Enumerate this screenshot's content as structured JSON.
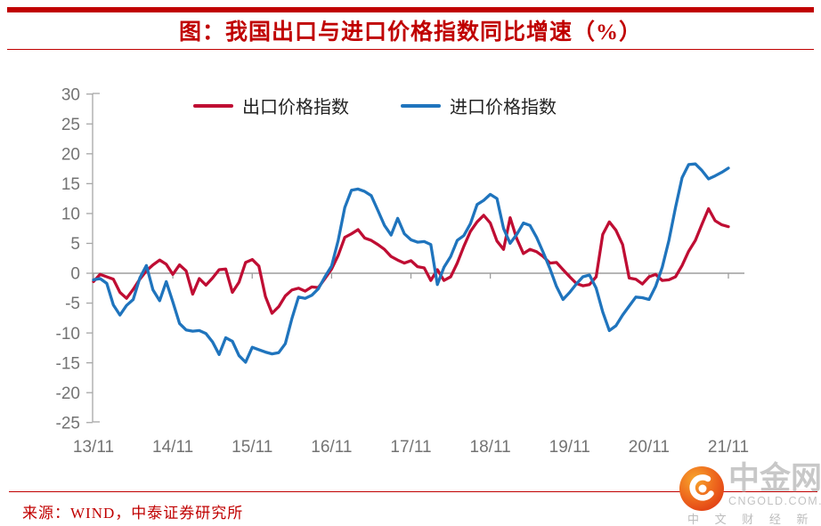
{
  "header": {
    "title": "图：我国出口与进口价格指数同比增速（%）"
  },
  "chart_data": {
    "type": "line",
    "title": "图：我国出口与进口价格指数同比增速（%）",
    "xlabel": "",
    "ylabel": "",
    "ylim": [
      -25,
      30
    ],
    "y_ticks": [
      30,
      25,
      20,
      15,
      10,
      5,
      0,
      -5,
      -10,
      -15,
      -20,
      -25
    ],
    "grid": "zero-line-only",
    "legend_position": "top-center",
    "x": [
      "2013-11",
      "2013-12",
      "2014-01",
      "2014-02",
      "2014-03",
      "2014-04",
      "2014-05",
      "2014-06",
      "2014-07",
      "2014-08",
      "2014-09",
      "2014-10",
      "2014-11",
      "2014-12",
      "2015-01",
      "2015-02",
      "2015-03",
      "2015-04",
      "2015-05",
      "2015-06",
      "2015-07",
      "2015-08",
      "2015-09",
      "2015-10",
      "2015-11",
      "2015-12",
      "2016-01",
      "2016-02",
      "2016-03",
      "2016-04",
      "2016-05",
      "2016-06",
      "2016-07",
      "2016-08",
      "2016-09",
      "2016-10",
      "2016-11",
      "2016-12",
      "2017-01",
      "2017-02",
      "2017-03",
      "2017-04",
      "2017-05",
      "2017-06",
      "2017-07",
      "2017-08",
      "2017-09",
      "2017-10",
      "2017-11",
      "2017-12",
      "2018-01",
      "2018-02",
      "2018-03",
      "2018-04",
      "2018-05",
      "2018-06",
      "2018-07",
      "2018-08",
      "2018-09",
      "2018-10",
      "2018-11",
      "2018-12",
      "2019-01",
      "2019-02",
      "2019-03",
      "2019-04",
      "2019-05",
      "2019-06",
      "2019-07",
      "2019-08",
      "2019-09",
      "2019-10",
      "2019-11",
      "2019-12",
      "2020-01",
      "2020-02",
      "2020-03",
      "2020-04",
      "2020-05",
      "2020-06",
      "2020-07",
      "2020-08",
      "2020-09",
      "2020-10",
      "2020-11",
      "2020-12",
      "2021-01",
      "2021-02",
      "2021-03",
      "2021-04",
      "2021-05",
      "2021-06",
      "2021-07",
      "2021-08",
      "2021-09",
      "2021-10",
      "2021-11"
    ],
    "x_tick_indices": [
      0,
      12,
      24,
      36,
      48,
      60,
      72,
      84,
      96
    ],
    "x_tick_labels": [
      "13/11",
      "14/11",
      "15/11",
      "16/11",
      "17/11",
      "18/11",
      "19/11",
      "20/11",
      "21/11"
    ],
    "series": [
      {
        "name": "出口价格指数",
        "color": "#bf0d33",
        "values": [
          -1.4,
          -0.2,
          -0.6,
          -1.0,
          -3.2,
          -4.2,
          -2.7,
          -1.0,
          0.4,
          1.4,
          2.2,
          1.5,
          -0.2,
          1.4,
          0.4,
          -3.5,
          -0.9,
          -2.0,
          -0.8,
          0.6,
          0.7,
          -3.2,
          -1.5,
          1.8,
          2.3,
          1.2,
          -3.9,
          -6.7,
          -5.6,
          -3.8,
          -2.8,
          -2.5,
          -3.0,
          -2.3,
          -2.4,
          -0.9,
          0.7,
          3.0,
          6.0,
          6.6,
          7.3,
          5.9,
          5.5,
          4.8,
          4.0,
          2.8,
          2.2,
          1.7,
          2.1,
          1.1,
          0.9,
          -1.2,
          0.6,
          -1.2,
          -0.6,
          1.7,
          4.5,
          7.0,
          8.6,
          9.7,
          8.4,
          5.4,
          4.0,
          9.3,
          5.8,
          3.3,
          4.0,
          3.6,
          2.8,
          1.7,
          1.8,
          0.6,
          -0.6,
          -1.7,
          -2.1,
          -1.9,
          -0.6,
          6.5,
          8.6,
          7.2,
          4.8,
          -0.8,
          -1.0,
          -1.8,
          -0.6,
          -0.2,
          -1.2,
          -1.1,
          -0.6,
          1.3,
          3.7,
          5.5,
          8.2,
          10.8,
          8.8,
          8.1,
          7.8
        ]
      },
      {
        "name": "进口价格指数",
        "color": "#1f74bd",
        "values": [
          -1.1,
          -0.9,
          -1.7,
          -5.3,
          -7.0,
          -5.4,
          -4.4,
          -0.8,
          1.3,
          -2.8,
          -4.6,
          -1.4,
          -4.8,
          -8.4,
          -9.5,
          -9.7,
          -9.6,
          -10.1,
          -11.5,
          -13.6,
          -10.8,
          -11.4,
          -13.8,
          -14.9,
          -12.4,
          -12.8,
          -13.2,
          -13.5,
          -13.3,
          -11.8,
          -7.6,
          -4.0,
          -4.2,
          -3.7,
          -2.6,
          -0.6,
          1.2,
          5.5,
          11.0,
          13.9,
          14.1,
          13.7,
          13.0,
          10.5,
          8.0,
          6.4,
          9.2,
          6.6,
          5.6,
          5.2,
          5.3,
          4.8,
          -1.9,
          1.0,
          2.8,
          5.5,
          6.3,
          8.3,
          11.5,
          12.2,
          13.2,
          12.5,
          7.5,
          5.0,
          6.5,
          8.4,
          8.0,
          6.0,
          3.5,
          0.8,
          -2.2,
          -4.4,
          -3.2,
          -1.8,
          -0.6,
          -0.3,
          -2.5,
          -6.5,
          -9.6,
          -8.8,
          -7.0,
          -5.5,
          -4.0,
          -4.1,
          -4.4,
          -2.2,
          1.0,
          5.5,
          11.0,
          16.0,
          18.2,
          18.3,
          17.2,
          15.8,
          16.3,
          16.9,
          17.6
        ]
      }
    ]
  },
  "source": {
    "text": "来源：WIND，中泰证券研究所"
  },
  "logo": {
    "name": "中金网",
    "domain": "CNGOLD.COM.CN",
    "tagline": "中 文 财 经 新 媒 体"
  },
  "colors": {
    "accent_red": "#c00000",
    "export_line": "#bf0d33",
    "import_line": "#1f74bd",
    "axis_gray": "#a6a6a6",
    "label_gray": "#737373"
  }
}
